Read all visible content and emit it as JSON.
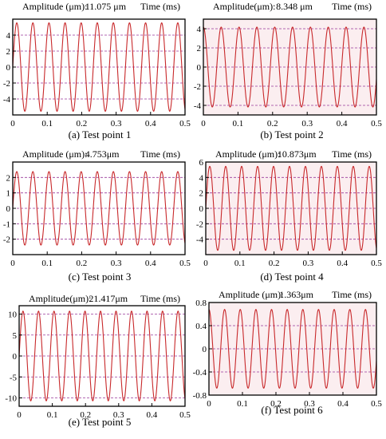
{
  "chart_data": [
    {
      "type": "line",
      "caption": "(a) Test point 1",
      "header": {
        "amplitude_label": "Amplitude  (μm):",
        "amplitude_value": "11.075  μm",
        "time_label": "Time (ms)"
      },
      "xlim": [
        0,
        0.5
      ],
      "ylim": [
        -6,
        6
      ],
      "xticks": [
        0,
        0.1,
        0.2,
        0.3,
        0.4,
        0.5
      ],
      "xtick_labels": [
        "0",
        "0.1",
        "0.2",
        "0.3",
        "0.4",
        "0.5"
      ],
      "yticks": [
        4,
        2,
        0,
        -2,
        -4
      ],
      "ytick_labels": [
        "4",
        "2",
        "0",
        "-2",
        "-4"
      ],
      "grid": "dashed-horizontal",
      "signal": {
        "amplitude": 5.54,
        "cycles": 10.7,
        "phase_deg": 0
      },
      "line_colors": [
        "#c8282a",
        "#3c8a3c"
      ]
    },
    {
      "type": "line",
      "caption": "(b) Test point 2",
      "header": {
        "amplitude_label": "Amplitude(μm):",
        "amplitude_value": "8.348    μm",
        "time_label": "Time (ms)"
      },
      "xlim": [
        0,
        0.5
      ],
      "ylim": [
        -5,
        5
      ],
      "xticks": [
        0,
        0.1,
        0.2,
        0.3,
        0.4,
        0.5
      ],
      "xtick_labels": [
        "0",
        "0.1",
        "0.2",
        "0.3",
        "0.4",
        "0.5"
      ],
      "yticks": [
        4,
        2,
        0,
        -2,
        -4
      ],
      "ytick_labels": [
        "4",
        "2",
        "0",
        "-2",
        "-4"
      ],
      "grid": "dashed-horizontal",
      "signal": {
        "amplitude": 4.17,
        "cycles": 9.7,
        "phase_deg": 90
      },
      "line_colors": [
        "#c8282a",
        "#b03030"
      ]
    },
    {
      "type": "line",
      "caption": "(c) Test point 3",
      "header": {
        "amplitude_label": "Amplitude (μm):",
        "amplitude_value": "4.753μm",
        "time_label": "Time (ms)"
      },
      "xlim": [
        0,
        0.5
      ],
      "ylim": [
        -3,
        3
      ],
      "xticks": [
        0,
        0.1,
        0.2,
        0.3,
        0.4,
        0.5
      ],
      "xtick_labels": [
        "0",
        "0.1",
        "0.2",
        "0.3",
        "0.4",
        "0.5"
      ],
      "yticks": [
        2,
        1,
        0,
        -1,
        -2
      ],
      "ytick_labels": [
        "2",
        "1",
        "0",
        "-1",
        "-2"
      ],
      "grid": "dashed-horizontal",
      "signal": {
        "amplitude": 2.38,
        "cycles": 10.7,
        "phase_deg": 0
      },
      "line_colors": [
        "#c8282a",
        "#3c8a3c"
      ]
    },
    {
      "type": "line",
      "caption": "(d) Test point 4",
      "header": {
        "amplitude_label": "Amplitude (μm):",
        "amplitude_value": "10.873μm",
        "time_label": "Time (ms)"
      },
      "xlim": [
        0,
        0.5
      ],
      "ylim": [
        -6,
        6
      ],
      "xticks": [
        0,
        0.1,
        0.2,
        0.3,
        0.4,
        0.5
      ],
      "xtick_labels": [
        "0",
        "0.1",
        "0.2",
        "0.3",
        "0.4",
        "0.5"
      ],
      "yticks": [
        6,
        4,
        2,
        0,
        -2,
        -4
      ],
      "ytick_labels": [
        "6",
        "4",
        "2",
        "0",
        "-2",
        "-4"
      ],
      "grid": "dashed-horizontal",
      "signal": {
        "amplitude": 5.44,
        "cycles": 10.7,
        "phase_deg": 0
      },
      "line_colors": [
        "#c8282a",
        "#3c8a3c"
      ]
    },
    {
      "type": "line",
      "caption": "(e) Test point 5",
      "header": {
        "amplitude_label": "Amplitude(μm):",
        "amplitude_value": "21.417μm",
        "time_label": "Time (ms)"
      },
      "xlim": [
        0,
        0.5
      ],
      "ylim": [
        -12,
        12
      ],
      "xticks": [
        0,
        0.1,
        0.2,
        0.3,
        0.4,
        0.5
      ],
      "xtick_labels": [
        "0",
        "0.1",
        "0.2",
        "0.3",
        "0.4",
        "0.5"
      ],
      "yticks": [
        10,
        5,
        0,
        -5,
        -10
      ],
      "ytick_labels": [
        "10",
        "5",
        "0",
        "-5",
        "-10"
      ],
      "grid": "dashed-horizontal",
      "signal": {
        "amplitude": 10.7,
        "cycles": 10.7,
        "phase_deg": 0
      },
      "line_colors": [
        "#c8282a",
        "#3c8a3c"
      ]
    },
    {
      "type": "line",
      "caption": "(f) Test point 6",
      "header": {
        "amplitude_label": "Amplitude (μm):",
        "amplitude_value": "1.363μm",
        "time_label": "Time (ms)"
      },
      "xlim": [
        0,
        0.5
      ],
      "ylim": [
        -0.8,
        0.8
      ],
      "xticks": [
        0,
        0.1,
        0.2,
        0.3,
        0.4,
        0.5
      ],
      "xtick_labels": [
        "0",
        "0.1",
        "0.2",
        "0.3",
        "0.4",
        "0.5"
      ],
      "yticks": [
        0.8,
        0.4,
        0,
        -0.4,
        -0.8
      ],
      "ytick_labels": [
        "0.8",
        "0.4",
        "0",
        "-0.4",
        "-0.8"
      ],
      "grid": "dashed-horizontal",
      "signal": {
        "amplitude": 0.68,
        "cycles": 10.7,
        "phase_deg": 90
      },
      "line_colors": [
        "#c8282a",
        "#b03030"
      ]
    }
  ],
  "colors": {
    "grid": "#9a3a9a",
    "signal": "#c8282a",
    "plot_bg": "#ffffff",
    "shaded_bg": "#fbeef0"
  }
}
